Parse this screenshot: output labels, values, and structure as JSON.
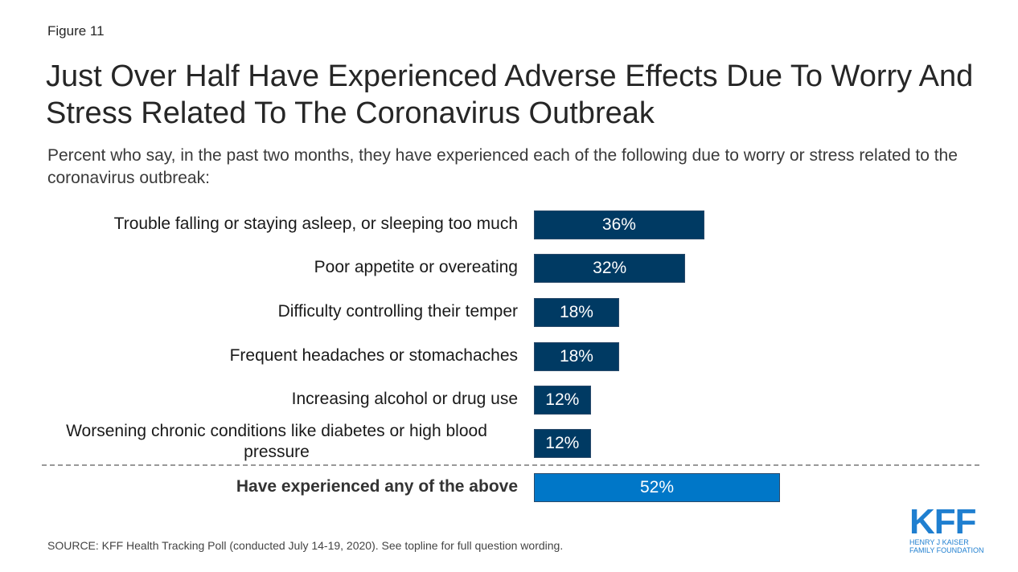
{
  "figure_label": "Figure 11",
  "title": "Just Over Half Have Experienced Adverse Effects Due To Worry And Stress Related To The Coronavirus Outbreak",
  "subtitle": "Percent who say, in the past two months, they have experienced each of the following due to worry or stress related to the coronavirus outbreak:",
  "source": "SOURCE: KFF Health Tracking Poll (conducted July 14-19, 2020). See topline for full question wording.",
  "logo": {
    "main": "KFF",
    "line1": "HENRY J KAISER",
    "line2": "FAMILY FOUNDATION"
  },
  "colors": {
    "primary_bar": "#003a63",
    "total_bar": "#0077c8",
    "logo": "#1f7fd0"
  },
  "chart_data": {
    "type": "bar",
    "orientation": "horizontal",
    "title": "Just Over Half Have Experienced Adverse Effects Due To Worry And Stress Related To The Coronavirus Outbreak",
    "xlabel": "",
    "ylabel": "",
    "xlim": [
      0,
      100
    ],
    "grid": false,
    "categories": [
      "Trouble falling or staying asleep, or sleeping too much",
      "Poor appetite or overeating",
      "Difficulty controlling their temper",
      "Frequent headaches or stomachaches",
      "Increasing alcohol or drug use",
      "Worsening chronic conditions like diabetes or high blood pressure",
      "Have experienced any of the above"
    ],
    "values": [
      36,
      32,
      18,
      18,
      12,
      12,
      52
    ],
    "data_labels": [
      "36%",
      "32%",
      "18%",
      "18%",
      "12%",
      "12%",
      "52%"
    ],
    "total_index": 6
  }
}
